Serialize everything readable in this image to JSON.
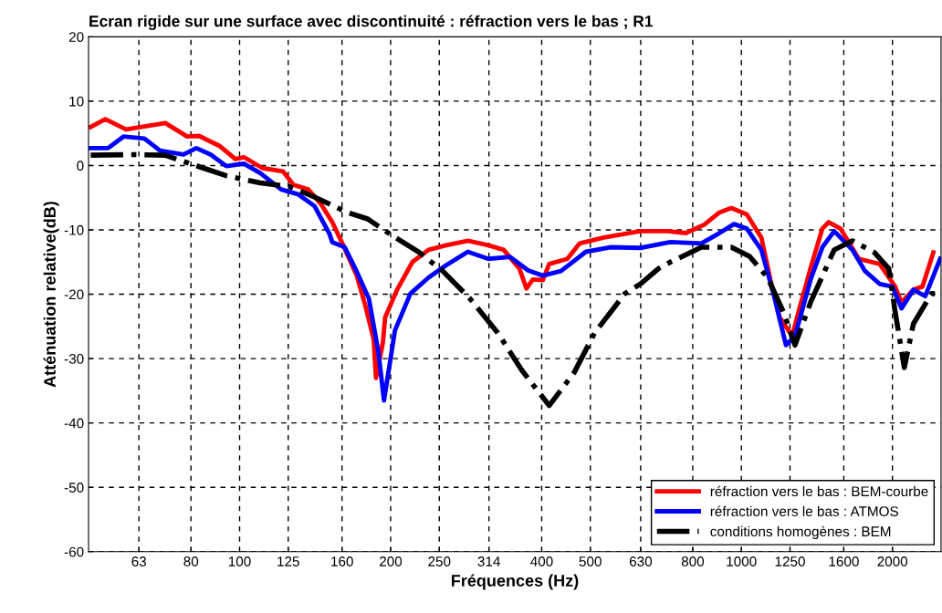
{
  "chart_data": {
    "type": "line",
    "title": "Ecran rigide sur une surface avec discontinuité : réfraction vers le bas ; R1",
    "xlabel": "Fréquences (Hz)",
    "ylabel": "Atténuation relative(dB)",
    "log": "x",
    "xlim": [
      50,
      2500
    ],
    "xticks": [
      63,
      80,
      100,
      125,
      160,
      200,
      250,
      314,
      400,
      500,
      630,
      800,
      1000,
      1250,
      1600,
      2000
    ],
    "ylim": [
      -60,
      20
    ],
    "yticks": [
      -60,
      -50,
      -40,
      -30,
      -20,
      -10,
      0,
      10,
      20
    ],
    "grid": true,
    "legend": "bottom right",
    "series": [
      {
        "name": "réfraction vers le bas : BEM-courbe",
        "color": "#ff0000",
        "line_style": "solid",
        "x": [
          50.5,
          54.0,
          59.4,
          71.1,
          78.6,
          83.0,
          91.4,
          98.1,
          102,
          111,
          122,
          128,
          137,
          145,
          153,
          160,
          171,
          178,
          185,
          187,
          193,
          195,
          206,
          221,
          238,
          258,
          285,
          313,
          336,
          361,
          373,
          384,
          402,
          414,
          450,
          476,
          532,
          629,
          713,
          775,
          843,
          904,
          955,
          1025,
          1096,
          1143,
          1192,
          1263,
          1295,
          1373,
          1450,
          1493,
          1576,
          1714,
          1886,
          2025,
          2085,
          2202,
          2296,
          2413
        ],
        "values": [
          6.0,
          7.2,
          5.6,
          6.6,
          4.5,
          4.6,
          3.0,
          1.0,
          1.3,
          -0.4,
          -0.9,
          -3.0,
          -3.7,
          -5.9,
          -8.8,
          -12,
          -17,
          -21.7,
          -27,
          -33,
          -27.5,
          -23.6,
          -19.3,
          -15,
          -13.1,
          -12.4,
          -11.7,
          -12.4,
          -13.1,
          -16,
          -19.1,
          -17.7,
          -17.8,
          -15.3,
          -14.5,
          -12.1,
          -11.2,
          -10.2,
          -10.2,
          -10.5,
          -9.2,
          -7.3,
          -6.6,
          -7.6,
          -11.2,
          -17.8,
          -23.6,
          -26.5,
          -23.2,
          -16,
          -9.8,
          -8.8,
          -9.8,
          -14.5,
          -15.3,
          -18.8,
          -21.3,
          -19.3,
          -18.8,
          -13.5
        ]
      },
      {
        "name": "réfraction vers le bas : ATMOS",
        "color": "#0000ff",
        "line_style": "solid",
        "x": [
          50.5,
          54.7,
          58.7,
          64.6,
          69.4,
          77.3,
          82.0,
          87.6,
          94.1,
          102,
          110,
          121,
          131,
          141,
          151,
          153,
          162,
          171,
          181,
          189,
          194,
          204,
          219,
          238,
          258,
          285,
          313,
          346,
          376,
          402,
          437,
          490,
          548,
          629,
          722,
          832,
          904,
          967,
          1025,
          1096,
          1162,
          1227,
          1279,
          1373,
          1450,
          1531,
          1664,
          1764,
          1886,
          2000,
          2085,
          2202,
          2325,
          2490
        ],
        "values": [
          2.7,
          2.7,
          4.5,
          4.2,
          2.3,
          1.7,
          2.7,
          1.7,
          -0.1,
          0.3,
          -1.2,
          -3.7,
          -4.5,
          -6.3,
          -10.6,
          -11.9,
          -12.7,
          -16.4,
          -20.7,
          -28.9,
          -36.5,
          -25.6,
          -19.9,
          -17.4,
          -15.5,
          -13.4,
          -14.5,
          -14.2,
          -16.3,
          -17.1,
          -16.4,
          -13.4,
          -12.7,
          -12.8,
          -11.9,
          -12.1,
          -10.5,
          -9.1,
          -9.8,
          -13.1,
          -20.3,
          -27.9,
          -26.5,
          -17.8,
          -12.7,
          -10.2,
          -13.1,
          -16.4,
          -18.4,
          -18.8,
          -22.2,
          -19.3,
          -20.3,
          -14.5
        ]
      },
      {
        "name": "conditions homogènes : BEM",
        "color": "#000000",
        "line_style": "dashdot",
        "x": [
          50.5,
          61.9,
          71.1,
          79.6,
          94.1,
          110,
          126,
          141,
          164,
          180,
          199,
          228,
          254,
          288,
          327,
          365,
          414,
          464,
          510,
          586,
          629,
          684,
          722,
          832,
          955,
          1038,
          1128,
          1212,
          1279,
          1373,
          1531,
          1664,
          1840,
          1967,
          2025,
          2112,
          2202,
          2393,
          2490
        ],
        "values": [
          1.6,
          1.7,
          1.6,
          0.3,
          -1.6,
          -2.7,
          -3.3,
          -4.9,
          -7.3,
          -8.3,
          -10.6,
          -13.5,
          -16.4,
          -20.7,
          -26,
          -31.8,
          -37.3,
          -32.2,
          -26,
          -19.9,
          -18.4,
          -16,
          -15,
          -12.7,
          -12.7,
          -14.1,
          -17.4,
          -22.7,
          -27.9,
          -21.3,
          -13.1,
          -11.7,
          -13.5,
          -16,
          -22.7,
          -31.4,
          -24.6,
          -19.9,
          -20
        ]
      }
    ]
  }
}
